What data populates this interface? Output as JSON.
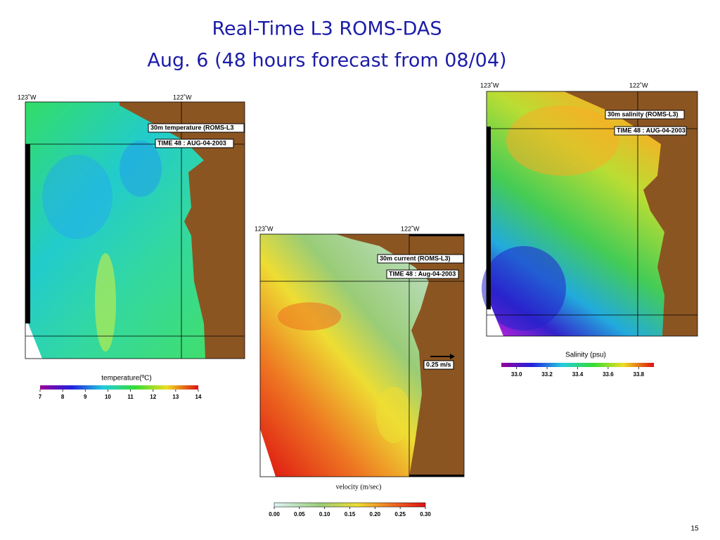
{
  "title": [
    "Real-Time L3 ROMS-DAS",
    "Aug. 6 (48 hours forecast from 08/04)"
  ],
  "panels": [
    {
      "lon_labels": [
        "123˚W",
        "122˚W"
      ],
      "label": "30m temperature (ROMS-L3",
      "time": "TIME 48 : AUG-04-2003",
      "colorbar_title": "temperature(ºC)",
      "colorbar_ticks": [
        "7",
        "8",
        "9",
        "10",
        "11",
        "12",
        "13",
        "14"
      ]
    },
    {
      "lon_labels": [
        "123˚W",
        "122˚W"
      ],
      "label": "30m current (ROMS-L3)",
      "time": "TIME 48 :  Aug-04-2003",
      "scale": "0.25 m/s",
      "colorbar_title": "velocity (m/sec)",
      "colorbar_ticks": [
        "0.00",
        "0.05",
        "0.10",
        "0.15",
        "0.20",
        "0.25",
        "0.30"
      ]
    },
    {
      "lon_labels": [
        "123˚W",
        "122˚W"
      ],
      "label": "30m salinity (ROMS-L3)",
      "time": "TIME 48 : AUG-04-2003",
      "colorbar_title": "Salinity (psu)",
      "colorbar_ticks": [
        "33.0",
        "33.2",
        "33.4",
        "33.6",
        "33.8"
      ]
    }
  ],
  "page_number": "15"
}
